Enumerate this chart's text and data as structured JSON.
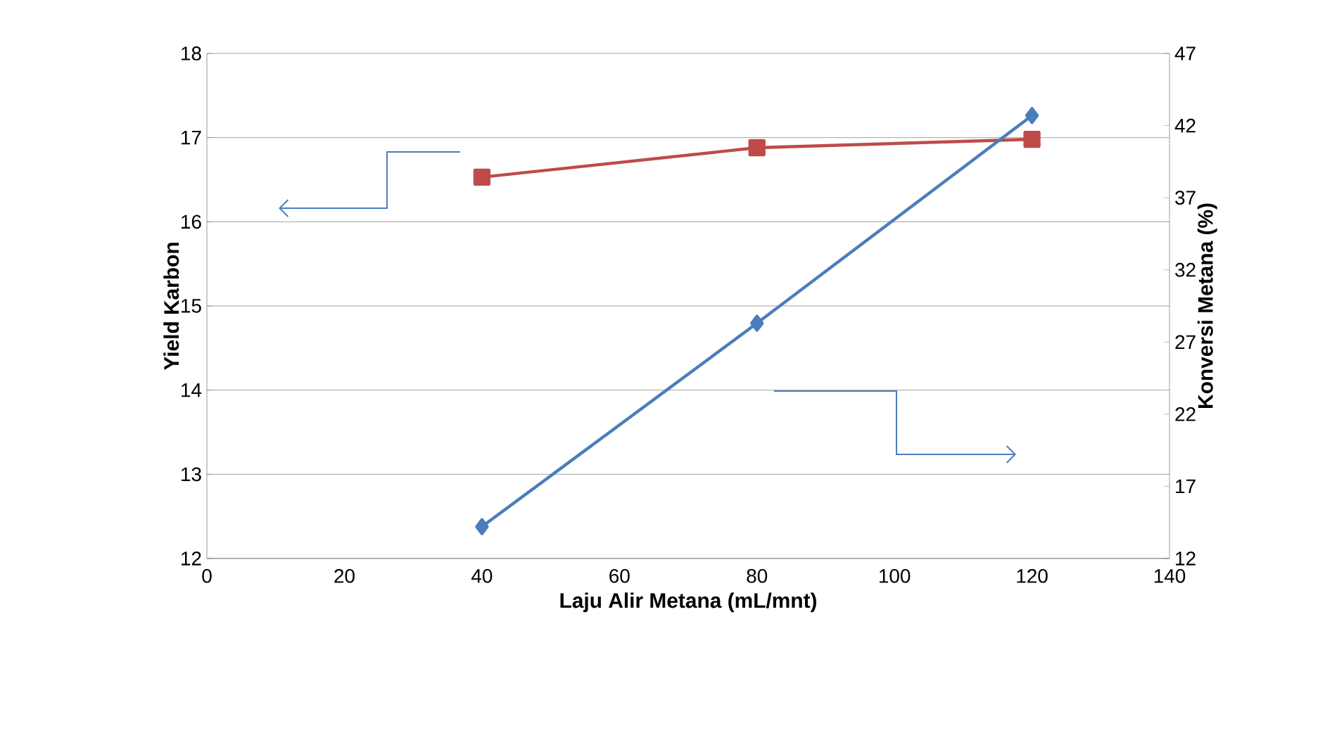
{
  "chart_data": {
    "type": "line",
    "xlabel": "Laju Alir Metana (mL/mnt)",
    "ylabel": "Yield Karbon",
    "y2label": "Konversi Metana (%)",
    "x": [
      40,
      80,
      120
    ],
    "xlim": [
      0,
      140
    ],
    "xticks": [
      0,
      20,
      40,
      60,
      80,
      100,
      120,
      140
    ],
    "ylim": [
      12,
      18
    ],
    "yticks": [
      12,
      13,
      14,
      15,
      16,
      17,
      18
    ],
    "y2lim": [
      12,
      47
    ],
    "y2ticks": [
      12,
      17,
      22,
      27,
      32,
      37,
      42,
      47
    ],
    "grid": "y",
    "series": [
      {
        "color": "#be4b48",
        "values": [
          16.53,
          16.88,
          16.98
        ],
        "marker": "square"
      },
      {
        "color": "#4a7ebb",
        "values": [
          14.2,
          28.3,
          42.7
        ],
        "marker": "diamond",
        "axis": "y2"
      }
    ]
  }
}
